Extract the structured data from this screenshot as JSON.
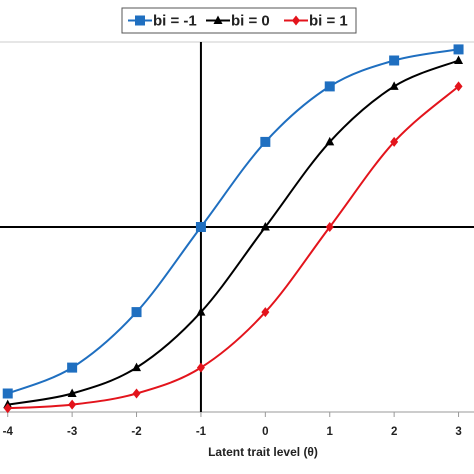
{
  "chart_data": {
    "type": "line",
    "x_label": "Latent trait level (θ)",
    "x": [
      -4,
      -3,
      -2,
      -1,
      0,
      1,
      2,
      3
    ],
    "series": [
      {
        "name": "bi = -1",
        "color": "#1f6fc0",
        "marker": "square",
        "values": [
          0.05,
          0.12,
          0.27,
          0.5,
          0.73,
          0.88,
          0.95,
          0.98
        ]
      },
      {
        "name": "bi = 0",
        "color": "#000000",
        "marker": "triangle",
        "values": [
          0.02,
          0.05,
          0.12,
          0.27,
          0.5,
          0.73,
          0.88,
          0.95
        ]
      },
      {
        "name": "bi = 1",
        "color": "#e3141c",
        "marker": "diamond",
        "values": [
          0.01,
          0.02,
          0.05,
          0.12,
          0.27,
          0.5,
          0.73,
          0.88
        ]
      }
    ],
    "xlim": [
      -4.12,
      3.24
    ],
    "xticks": [
      -4,
      -3,
      -2,
      -1,
      0,
      1,
      2,
      3
    ],
    "ylim": [
      0,
      1
    ],
    "vline": -1,
    "hline": 0.5,
    "legend": "top"
  }
}
